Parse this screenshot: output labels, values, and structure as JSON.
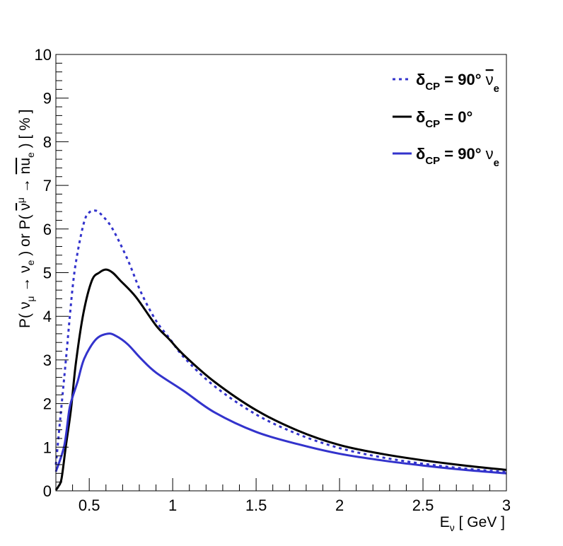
{
  "chart_data": {
    "type": "line",
    "title": "",
    "xlabel": {
      "main": "E",
      "sub": "ν",
      "unit": "  [ GeV ]"
    },
    "ylabel": {
      "p1": "P( ν",
      "p1sub": "μ",
      "p2": " → ν",
      "p2sub": "e",
      "p3": " ) or P( ",
      "p3bar": "ν",
      "p3sub": "μ",
      "p4": " → ",
      "p4bar": "nu",
      "p4sub": "e",
      "p5": " )  [ % ]"
    },
    "xlim": [
      0.3,
      3
    ],
    "ylim": [
      0,
      10
    ],
    "grid": false,
    "x_ticks": [
      "0.5",
      "1",
      "1.5",
      "2",
      "2.5",
      "3"
    ],
    "x_tick_values": [
      0.5,
      1,
      1.5,
      2,
      2.5,
      3
    ],
    "y_ticks": [
      "0",
      "1",
      "2",
      "3",
      "4",
      "5",
      "6",
      "7",
      "8",
      "9",
      "10"
    ],
    "legend_position": "top-right",
    "series": [
      {
        "name": "δCP = 90° ν̄e",
        "legend": {
          "delta": "δ",
          "sub": "CP",
          "rest": " = 90° ",
          "nu": "ν",
          "bar": true,
          "nusub": "e"
        },
        "color": "#3333cc",
        "style": "dashed",
        "x": [
          0.3,
          0.32,
          0.334,
          0.36,
          0.4,
          0.43,
          0.47,
          0.5,
          0.54,
          0.58,
          0.64,
          0.73,
          0.81,
          0.9,
          0.98,
          1.07,
          1.25,
          1.5,
          1.75,
          2.0,
          2.25,
          2.5,
          2.75,
          3.0
        ],
        "y": [
          0.6,
          1.4,
          1.96,
          3.0,
          4.65,
          5.46,
          6.17,
          6.38,
          6.42,
          6.3,
          6.0,
          5.3,
          4.55,
          3.9,
          3.5,
          3.05,
          2.4,
          1.75,
          1.3,
          0.98,
          0.77,
          0.62,
          0.51,
          0.43
        ]
      },
      {
        "name": "δCP = 0°",
        "legend": {
          "delta": "δ",
          "sub": "CP",
          "rest": " = 0°",
          "nu": "",
          "bar": false,
          "nusub": ""
        },
        "color": "#000000",
        "style": "solid",
        "x": [
          0.3,
          0.315,
          0.334,
          0.36,
          0.39,
          0.42,
          0.465,
          0.516,
          0.56,
          0.6,
          0.64,
          0.686,
          0.78,
          0.9,
          0.98,
          1.07,
          1.25,
          1.5,
          1.75,
          2.0,
          2.25,
          2.5,
          2.75,
          3.0
        ],
        "y": [
          0.02,
          0.1,
          0.28,
          1.03,
          1.85,
          2.93,
          4.07,
          4.82,
          5.0,
          5.07,
          5.0,
          4.82,
          4.44,
          3.79,
          3.47,
          3.1,
          2.5,
          1.85,
          1.38,
          1.05,
          0.85,
          0.7,
          0.58,
          0.48
        ]
      },
      {
        "name": "δCP = 90° νe",
        "legend": {
          "delta": "δ",
          "sub": "CP",
          "rest": " = 90° ",
          "nu": "ν",
          "bar": false,
          "nusub": "e"
        },
        "color": "#3333cc",
        "style": "solid",
        "x": [
          0.3,
          0.35,
          0.38,
          0.4,
          0.43,
          0.47,
          0.54,
          0.61,
          0.66,
          0.73,
          0.81,
          0.9,
          1.07,
          1.25,
          1.5,
          1.75,
          2.0,
          2.25,
          2.5,
          2.75,
          3.0
        ],
        "y": [
          0.44,
          1.03,
          1.85,
          2.15,
          2.5,
          3.03,
          3.47,
          3.6,
          3.55,
          3.36,
          3.03,
          2.71,
          2.28,
          1.8,
          1.35,
          1.07,
          0.85,
          0.7,
          0.58,
          0.48,
          0.4
        ]
      }
    ]
  }
}
